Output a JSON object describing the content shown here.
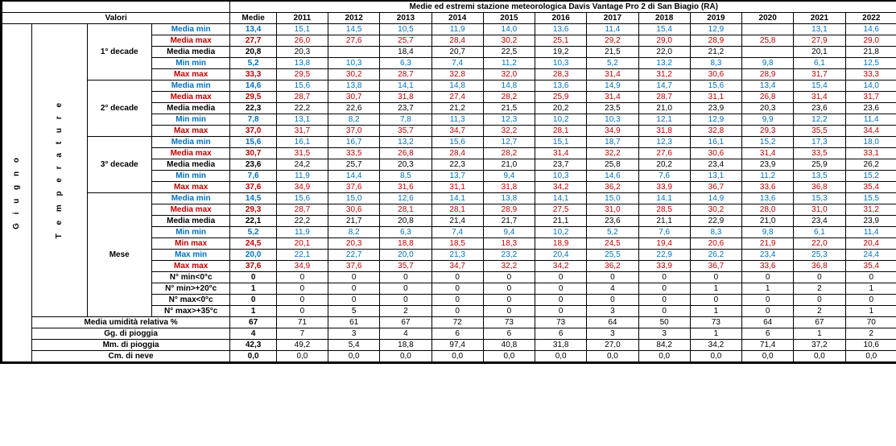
{
  "title": "Medie ed estremi stazione meteorologica Davis Vantage Pro 2 di San Biagio (RA)",
  "valori": "Valori",
  "month": "G i u g n o",
  "param": "T e m p e r a t u r e",
  "colHeaders": [
    "Medie",
    "2011",
    "2012",
    "2013",
    "2014",
    "2015",
    "2016",
    "2017",
    "2018",
    "2019",
    "2020",
    "2021",
    "2022"
  ],
  "groups": [
    {
      "name": "1° decade",
      "rows": [
        {
          "lbl": "Media min",
          "color": "blue",
          "v": [
            "13,4",
            "15,1",
            "14,5",
            "10,5",
            "11,9",
            "14,0",
            "13,6",
            "11,4",
            "15,4",
            "12,9",
            "",
            "13,1",
            "14,6"
          ]
        },
        {
          "lbl": "Media max",
          "color": "red",
          "v": [
            "27,7",
            "26,0",
            "27,6",
            "25,7",
            "28,4",
            "30,2",
            "25,1",
            "29,2",
            "29,0",
            "28,9",
            "25,8",
            "27,9",
            "29,0"
          ]
        },
        {
          "lbl": "Media media",
          "color": "black",
          "v": [
            "20,8",
            "20,3",
            "",
            "18,4",
            "20,7",
            "22,5",
            "19,2",
            "21,5",
            "22,0",
            "21,2",
            "",
            "20,1",
            "21,8"
          ]
        },
        {
          "lbl": "Min min",
          "color": "blue",
          "v": [
            "5,2",
            "13,8",
            "10,3",
            "6,3",
            "7,4",
            "11,2",
            "10,3",
            "5,2",
            "13,2",
            "8,3",
            "9,8",
            "6,1",
            "12,5"
          ]
        },
        {
          "lbl": "Max max",
          "color": "red",
          "v": [
            "33,3",
            "29,5",
            "30,2",
            "28,7",
            "32,8",
            "32,0",
            "28,3",
            "31,4",
            "31,2",
            "30,6",
            "28,9",
            "31,7",
            "33,3"
          ]
        }
      ]
    },
    {
      "name": "2° decade",
      "rows": [
        {
          "lbl": "Media min",
          "color": "blue",
          "v": [
            "14,6",
            "15,6",
            "13,8",
            "14,1",
            "14,8",
            "14,8",
            "13,6",
            "14,9",
            "14,7",
            "15,6",
            "13,4",
            "15,4",
            "14,0"
          ]
        },
        {
          "lbl": "Media max",
          "color": "red",
          "v": [
            "29,5",
            "28,7",
            "30,7",
            "31,8",
            "27,4",
            "28,2",
            "25,9",
            "31,4",
            "28,7",
            "31,1",
            "26,8",
            "31,4",
            "31,7"
          ]
        },
        {
          "lbl": "Media media",
          "color": "black",
          "v": [
            "22,3",
            "22,2",
            "22,6",
            "23,7",
            "21,2",
            "21,5",
            "20,2",
            "23,5",
            "21,0",
            "23,9",
            "20,3",
            "23,6",
            "23,6"
          ]
        },
        {
          "lbl": "Min min",
          "color": "blue",
          "v": [
            "7,8",
            "13,1",
            "8,2",
            "7,8",
            "11,3",
            "12,3",
            "10,2",
            "10,3",
            "12,1",
            "12,9",
            "9,9",
            "12,2",
            "11,4"
          ]
        },
        {
          "lbl": "Max max",
          "color": "red",
          "v": [
            "37,0",
            "31,7",
            "37,0",
            "35,7",
            "34,7",
            "32,2",
            "28,1",
            "34,9",
            "31,8",
            "32,8",
            "29,3",
            "35,5",
            "34,4"
          ]
        }
      ]
    },
    {
      "name": "3° decade",
      "rows": [
        {
          "lbl": "Media min",
          "color": "blue",
          "v": [
            "15,6",
            "16,1",
            "16,7",
            "13,2",
            "15,6",
            "12,7",
            "15,1",
            "18,7",
            "12,3",
            "16,1",
            "15,2",
            "17,3",
            "18,0"
          ]
        },
        {
          "lbl": "Media max",
          "color": "red",
          "v": [
            "30,7",
            "31,5",
            "33,5",
            "26,8",
            "28,4",
            "28,2",
            "31,4",
            "32,2",
            "27,6",
            "30,6",
            "31,4",
            "33,5",
            "33,1"
          ]
        },
        {
          "lbl": "Media media",
          "color": "black",
          "v": [
            "23,6",
            "24,2",
            "25,7",
            "20,3",
            "22,3",
            "21,0",
            "23,7",
            "25,8",
            "20,2",
            "23,4",
            "23,9",
            "25,9",
            "26,2"
          ]
        },
        {
          "lbl": "Min min",
          "color": "blue",
          "v": [
            "7,6",
            "11,9",
            "14,4",
            "8,5",
            "13,7",
            "9,4",
            "10,3",
            "14,6",
            "7,6",
            "13,1",
            "11,2",
            "13,5",
            "15,2"
          ]
        },
        {
          "lbl": "Max max",
          "color": "red",
          "v": [
            "37,6",
            "34,9",
            "37,6",
            "31,6",
            "31,1",
            "31,8",
            "34,2",
            "36,2",
            "33,9",
            "36,7",
            "33,6",
            "36,8",
            "35,4"
          ]
        }
      ]
    },
    {
      "name": "Mese",
      "rows": [
        {
          "lbl": "Media min",
          "color": "blue",
          "v": [
            "14,5",
            "15,6",
            "15,0",
            "12,6",
            "14,1",
            "13,8",
            "14,1",
            "15,0",
            "14,1",
            "14,9",
            "13,6",
            "15,3",
            "15,5"
          ]
        },
        {
          "lbl": "Media max",
          "color": "red",
          "v": [
            "29,3",
            "28,7",
            "30,6",
            "28,1",
            "28,1",
            "28,9",
            "27,5",
            "31,0",
            "28,5",
            "30,2",
            "28,0",
            "31,0",
            "31,2"
          ]
        },
        {
          "lbl": "Media media",
          "color": "black",
          "v": [
            "22,1",
            "22,2",
            "21,7",
            "20,8",
            "21,4",
            "21,7",
            "21,1",
            "23,6",
            "21,1",
            "22,9",
            "21,0",
            "23,4",
            "23,9"
          ]
        },
        {
          "lbl": "Min min",
          "color": "blue",
          "v": [
            "5,2",
            "11,9",
            "8,2",
            "6,3",
            "7,4",
            "9,4",
            "10,2",
            "5,2",
            "7,6",
            "8,3",
            "9,8",
            "6,1",
            "11,4"
          ]
        },
        {
          "lbl": "Min max",
          "color": "red",
          "v": [
            "24,5",
            "20,1",
            "20,3",
            "18,8",
            "18,5",
            "18,3",
            "18,9",
            "24,5",
            "19,4",
            "20,6",
            "21,9",
            "22,0",
            "20,4"
          ]
        },
        {
          "lbl": "Max min",
          "color": "blue",
          "v": [
            "20,0",
            "22,1",
            "22,7",
            "20,0",
            "21,3",
            "23,2",
            "20,4",
            "25,5",
            "22,9",
            "26,2",
            "23,4",
            "25,3",
            "24,4"
          ]
        },
        {
          "lbl": "Max max",
          "color": "red",
          "v": [
            "37,6",
            "34,9",
            "37,6",
            "35,7",
            "34,7",
            "32,2",
            "34,2",
            "36,2",
            "33,9",
            "36,7",
            "33,6",
            "36,8",
            "35,4"
          ]
        },
        {
          "lbl": "N° min<0°c",
          "color": "black",
          "v": [
            "0",
            "0",
            "0",
            "0",
            "0",
            "0",
            "0",
            "0",
            "0",
            "0",
            "0",
            "0",
            "0"
          ]
        },
        {
          "lbl": "N° min>+20°c",
          "color": "black",
          "v": [
            "1",
            "0",
            "0",
            "0",
            "0",
            "0",
            "0",
            "4",
            "0",
            "1",
            "1",
            "2",
            "1"
          ]
        },
        {
          "lbl": "N° max<0°c",
          "color": "black",
          "v": [
            "0",
            "0",
            "0",
            "0",
            "0",
            "0",
            "0",
            "0",
            "0",
            "0",
            "0",
            "0",
            "0"
          ]
        },
        {
          "lbl": "N° max>+35°c",
          "color": "black",
          "v": [
            "1",
            "0",
            "5",
            "2",
            "0",
            "0",
            "0",
            "3",
            "0",
            "1",
            "0",
            "2",
            "1"
          ]
        }
      ]
    }
  ],
  "bottomRows": [
    {
      "lbl": "Media umidità relativa %",
      "v": [
        "67",
        "71",
        "61",
        "67",
        "72",
        "73",
        "73",
        "64",
        "50",
        "73",
        "64",
        "67",
        "70"
      ]
    },
    {
      "lbl": "Gg. di pioggia",
      "v": [
        "4",
        "7",
        "3",
        "4",
        "6",
        "6",
        "6",
        "3",
        "3",
        "1",
        "6",
        "1",
        "2"
      ]
    },
    {
      "lbl": "Mm. di pioggia",
      "v": [
        "42,3",
        "49,2",
        "5,4",
        "18,8",
        "97,4",
        "40,8",
        "31,8",
        "27,0",
        "84,2",
        "34,2",
        "71,4",
        "37,2",
        "10,6"
      ]
    },
    {
      "lbl": "Cm. di neve",
      "v": [
        "0,0",
        "0,0",
        "0,0",
        "0,0",
        "0,0",
        "0,0",
        "0,0",
        "0,0",
        "0,0",
        "0,0",
        "0,0",
        "0,0",
        "0,0"
      ]
    }
  ]
}
